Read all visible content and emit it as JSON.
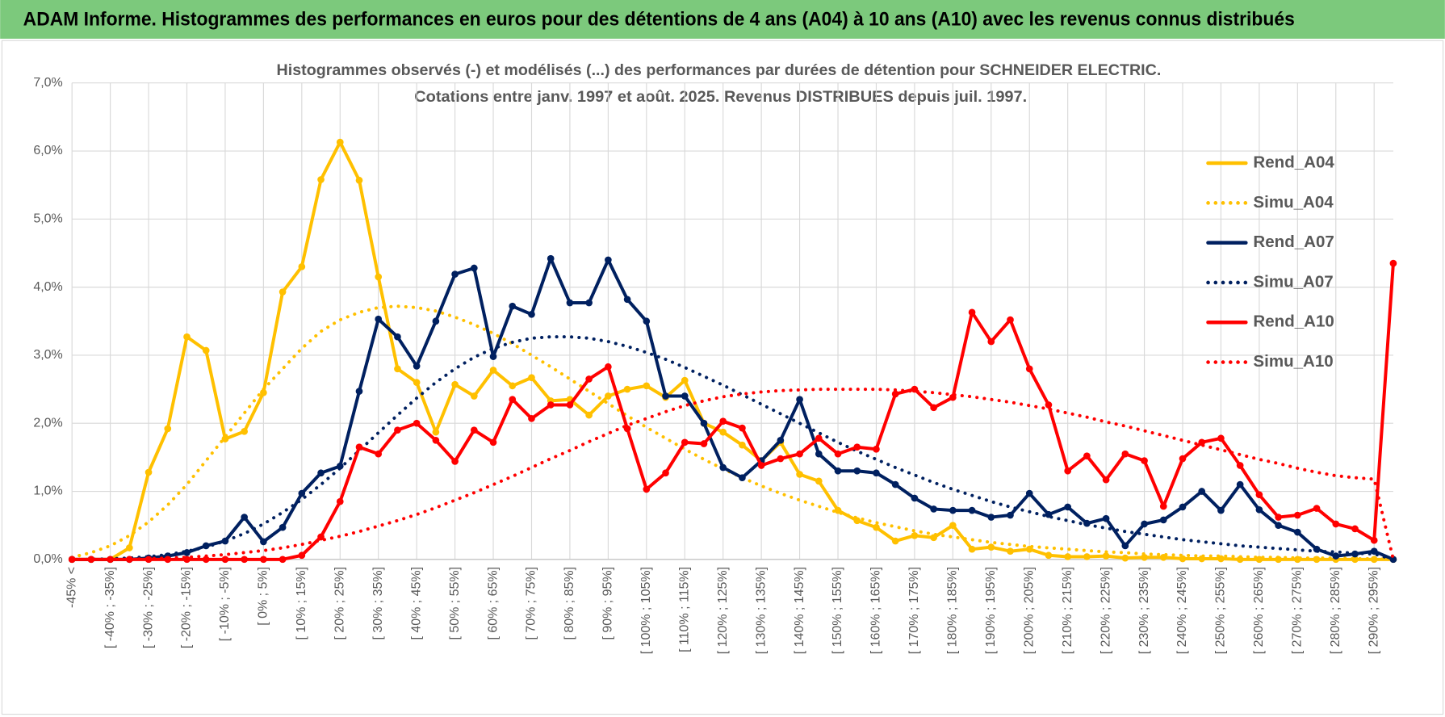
{
  "header": {
    "title": "ADAM Informe. Histogrammes des performances en euros pour des détentions de 4 ans (A04) à 10 ans (A10) avec les revenus connus distribués"
  },
  "chart_data": {
    "type": "line",
    "title": [
      "Histogrammes observés (-) et modélisés (...) des performances par durées de détention pour SCHNEIDER ELECTRIC.",
      "Cotations entre janv. 1997 et août. 2025. Revenus DISTRIBUES depuis juil. 1997."
    ],
    "categories": [
      "-45% <",
      null,
      "[ -40% ; -35%]",
      null,
      "[ -30% ; -25%]",
      null,
      "[ -20% ; -15%]",
      null,
      "[ -10% ; -5%]",
      null,
      "[ 0% ; 5%]",
      null,
      "[ 10% ; 15%]",
      null,
      "[ 20% ; 25%]",
      null,
      "[ 30% ; 35%]",
      null,
      "[ 40% ; 45%]",
      null,
      "[ 50% ; 55%]",
      null,
      "[ 60% ; 65%]",
      null,
      "[ 70% ; 75%]",
      null,
      "[ 80% ; 85%]",
      null,
      "[ 90% ; 95%]",
      null,
      "[ 100% ; 105%]",
      null,
      "[ 110% ; 115%]",
      null,
      "[ 120% ; 125%]",
      null,
      "[ 130% ; 135%]",
      null,
      "[ 140% ; 145%]",
      null,
      "[ 150% ; 155%]",
      null,
      "[ 160% ; 165%]",
      null,
      "[ 170% ; 175%]",
      null,
      "[ 180% ; 185%]",
      null,
      "[ 190% ; 195%]",
      null,
      "[ 200% ; 205%]",
      null,
      "[ 210% ; 215%]",
      null,
      "[ 220% ; 225%]",
      null,
      "[ 230% ; 235%]",
      null,
      "[ 240% ; 245%]",
      null,
      "[ 250% ; 255%]",
      null,
      "[ 260% ; 265%]",
      null,
      "[ 270% ; 275%]",
      null,
      "[ 280% ; 285%]",
      null,
      "[ 290% ; 295%]",
      null
    ],
    "ylim": [
      0,
      7
    ],
    "yticks": [
      {
        "value": 0,
        "label": "0,0%"
      },
      {
        "value": 1,
        "label": "1,0%"
      },
      {
        "value": 2,
        "label": "2,0%"
      },
      {
        "value": 3,
        "label": "3,0%"
      },
      {
        "value": 4,
        "label": "4,0%"
      },
      {
        "value": 5,
        "label": "5,0%"
      },
      {
        "value": 6,
        "label": "6,0%"
      },
      {
        "value": 7,
        "label": "7,0%"
      }
    ],
    "grid": true,
    "legend": "right",
    "series": [
      {
        "name": "Rend_A04",
        "color": "#ffc000",
        "style": "solid",
        "markers": true,
        "values": [
          0,
          0,
          0,
          0.17,
          1.28,
          1.92,
          3.27,
          3.07,
          1.77,
          1.88,
          2.45,
          3.93,
          4.3,
          5.58,
          6.13,
          5.57,
          4.15,
          2.8,
          2.6,
          1.87,
          2.57,
          2.4,
          2.78,
          2.55,
          2.67,
          2.33,
          2.35,
          2.12,
          2.4,
          2.5,
          2.55,
          2.38,
          2.63,
          2.0,
          1.87,
          1.68,
          1.45,
          1.72,
          1.25,
          1.15,
          0.72,
          0.57,
          0.47,
          0.27,
          0.35,
          0.32,
          0.5,
          0.15,
          0.18,
          0.12,
          0.15,
          0.06,
          0.04,
          0.04,
          0.05,
          0.02,
          0.03,
          0.03,
          0.01,
          0.01,
          0.01,
          0,
          0,
          0,
          0,
          0,
          0,
          0,
          0,
          0
        ]
      },
      {
        "name": "Simu_A04",
        "color": "#ffc000",
        "style": "dotted",
        "markers": false,
        "values": [
          0.03,
          0.1,
          0.2,
          0.35,
          0.55,
          0.8,
          1.1,
          1.45,
          1.8,
          2.15,
          2.5,
          2.8,
          3.1,
          3.35,
          3.52,
          3.63,
          3.7,
          3.72,
          3.7,
          3.65,
          3.56,
          3.45,
          3.32,
          3.17,
          3.0,
          2.83,
          2.65,
          2.47,
          2.29,
          2.11,
          1.94,
          1.78,
          1.62,
          1.47,
          1.33,
          1.2,
          1.08,
          0.97,
          0.87,
          0.78,
          0.69,
          0.61,
          0.54,
          0.48,
          0.42,
          0.37,
          0.33,
          0.29,
          0.25,
          0.22,
          0.19,
          0.17,
          0.15,
          0.13,
          0.11,
          0.1,
          0.08,
          0.07,
          0.06,
          0.05,
          0.05,
          0.04,
          0.03,
          0.03,
          0.02,
          0.02,
          0.02,
          0.01,
          0.01,
          0
        ]
      },
      {
        "name": "Rend_A07",
        "color": "#002060",
        "style": "solid",
        "markers": true,
        "values": [
          0,
          0,
          0,
          0,
          0.02,
          0.05,
          0.1,
          0.2,
          0.27,
          0.62,
          0.26,
          0.47,
          0.97,
          1.27,
          1.37,
          2.47,
          3.53,
          3.27,
          2.84,
          3.5,
          4.19,
          4.28,
          2.98,
          3.72,
          3.6,
          4.42,
          3.77,
          3.77,
          4.4,
          3.82,
          3.5,
          2.4,
          2.4,
          2.0,
          1.35,
          1.2,
          1.45,
          1.75,
          2.35,
          1.55,
          1.3,
          1.3,
          1.27,
          1.1,
          0.9,
          0.74,
          0.72,
          0.72,
          0.62,
          0.65,
          0.97,
          0.66,
          0.77,
          0.53,
          0.6,
          0.2,
          0.52,
          0.58,
          0.77,
          1.0,
          0.72,
          1.1,
          0.73,
          0.5,
          0.4,
          0.15,
          0.05,
          0.08,
          0.12,
          0
        ]
      },
      {
        "name": "Simu_A07",
        "color": "#002060",
        "style": "dotted",
        "markers": false,
        "values": [
          0,
          0,
          0.01,
          0.02,
          0.04,
          0.07,
          0.12,
          0.18,
          0.27,
          0.38,
          0.52,
          0.69,
          0.88,
          1.1,
          1.34,
          1.6,
          1.86,
          2.12,
          2.37,
          2.6,
          2.8,
          2.97,
          3.1,
          3.19,
          3.25,
          3.27,
          3.27,
          3.25,
          3.2,
          3.13,
          3.04,
          2.94,
          2.82,
          2.69,
          2.56,
          2.42,
          2.28,
          2.14,
          2.0,
          1.86,
          1.72,
          1.59,
          1.47,
          1.35,
          1.24,
          1.13,
          1.03,
          0.94,
          0.85,
          0.77,
          0.7,
          0.63,
          0.57,
          0.51,
          0.46,
          0.41,
          0.37,
          0.33,
          0.29,
          0.26,
          0.23,
          0.2,
          0.18,
          0.16,
          0.14,
          0.12,
          0.11,
          0.09,
          0.08,
          0
        ]
      },
      {
        "name": "Rend_A10",
        "color": "#ff0000",
        "style": "solid",
        "markers": true,
        "values": [
          0,
          0,
          0,
          0,
          0,
          0,
          0,
          0,
          0,
          0,
          0,
          0,
          0.06,
          0.33,
          0.85,
          1.65,
          1.55,
          1.9,
          2.0,
          1.75,
          1.44,
          1.9,
          1.72,
          2.35,
          2.07,
          2.27,
          2.27,
          2.65,
          2.83,
          1.92,
          1.03,
          1.27,
          1.72,
          1.7,
          2.03,
          1.93,
          1.38,
          1.48,
          1.55,
          1.78,
          1.55,
          1.65,
          1.62,
          2.43,
          2.5,
          2.23,
          2.38,
          3.63,
          3.2,
          3.52,
          2.8,
          2.27,
          1.3,
          1.52,
          1.17,
          1.55,
          1.45,
          0.78,
          1.48,
          1.72,
          1.78,
          1.38,
          0.95,
          0.62,
          0.65,
          0.75,
          0.52,
          0.45,
          0.28,
          4.35
        ]
      },
      {
        "name": "Simu_A10",
        "color": "#ff0000",
        "style": "dotted",
        "markers": false,
        "values": [
          0,
          0,
          0,
          0,
          0.01,
          0.02,
          0.03,
          0.05,
          0.07,
          0.1,
          0.13,
          0.17,
          0.22,
          0.28,
          0.34,
          0.41,
          0.49,
          0.57,
          0.66,
          0.76,
          0.87,
          0.98,
          1.1,
          1.22,
          1.35,
          1.48,
          1.6,
          1.73,
          1.85,
          1.97,
          2.07,
          2.17,
          2.26,
          2.33,
          2.39,
          2.43,
          2.46,
          2.48,
          2.49,
          2.5,
          2.5,
          2.5,
          2.5,
          2.49,
          2.47,
          2.45,
          2.42,
          2.39,
          2.35,
          2.31,
          2.26,
          2.21,
          2.15,
          2.09,
          2.02,
          1.96,
          1.89,
          1.82,
          1.75,
          1.68,
          1.61,
          1.54,
          1.47,
          1.41,
          1.34,
          1.28,
          1.23,
          1.2,
          1.18,
          0
        ]
      }
    ]
  }
}
